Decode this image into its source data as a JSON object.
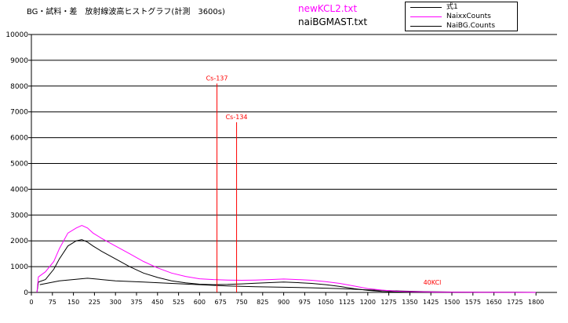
{
  "header": {
    "title": "BG・試料・差　放射線波高ヒストグラフ(計測　3600s)",
    "file1": "newKCL2.txt",
    "file2": "naiBGMAST.txt"
  },
  "colors": {
    "sample": "#ff00ff",
    "background": "#000000",
    "diff": "#000000",
    "annotation": "#ff0000",
    "file1": "#ff00ff"
  },
  "chart_data": {
    "type": "line",
    "xlim": [
      0,
      1875
    ],
    "ylim": [
      0,
      10000
    ],
    "x_ticks": [
      0,
      75,
      150,
      225,
      300,
      375,
      450,
      525,
      600,
      675,
      750,
      825,
      900,
      975,
      1050,
      1125,
      1200,
      1275,
      1350,
      1425,
      1500,
      1575,
      1650,
      1725,
      1800
    ],
    "y_ticks": [
      0,
      1000,
      2000,
      3000,
      4000,
      5000,
      6000,
      7000,
      8000,
      9000,
      10000
    ],
    "grid": "horizontal",
    "legend": "top-right",
    "series": [
      {
        "name": "式1",
        "color": "#000000",
        "x": [
          30,
          100,
          200,
          300,
          400,
          500,
          600,
          700,
          800,
          900,
          1000,
          1100,
          1200,
          1300,
          1400,
          1500,
          1600,
          1700,
          1800
        ],
        "y": [
          300,
          450,
          550,
          450,
          400,
          350,
          300,
          250,
          220,
          200,
          180,
          150,
          100,
          60,
          30,
          15,
          10,
          5,
          3
        ]
      },
      {
        "name": "NaixxCounts",
        "color": "#ff00ff",
        "x": [
          20,
          25,
          50,
          80,
          100,
          130,
          160,
          180,
          200,
          220,
          250,
          300,
          350,
          400,
          450,
          500,
          550,
          600,
          650,
          700,
          750,
          800,
          850,
          900,
          950,
          1000,
          1050,
          1100,
          1150,
          1200,
          1250,
          1300,
          1350,
          1400,
          1450,
          1500,
          1550,
          1600,
          1700,
          1800
        ],
        "y": [
          0,
          600,
          800,
          1200,
          1700,
          2300,
          2500,
          2600,
          2500,
          2300,
          2100,
          1800,
          1500,
          1200,
          950,
          750,
          620,
          530,
          500,
          480,
          470,
          480,
          500,
          520,
          500,
          470,
          420,
          350,
          250,
          150,
          90,
          50,
          30,
          20,
          12,
          8,
          5,
          3,
          2,
          1
        ]
      },
      {
        "name": "NaiBG.Counts",
        "color": "#000000",
        "x": [
          20,
          25,
          50,
          80,
          100,
          130,
          160,
          180,
          200,
          220,
          250,
          300,
          350,
          400,
          450,
          500,
          550,
          600,
          650,
          700,
          750,
          800,
          850,
          900,
          950,
          1000,
          1050,
          1100,
          1150,
          1200,
          1250,
          1300,
          1400,
          1500,
          1600,
          1700,
          1800
        ],
        "y": [
          0,
          400,
          500,
          900,
          1300,
          1800,
          2000,
          2050,
          1950,
          1800,
          1600,
          1300,
          1000,
          750,
          580,
          450,
          370,
          320,
          300,
          310,
          330,
          360,
          380,
          400,
          380,
          350,
          300,
          230,
          150,
          80,
          40,
          20,
          8,
          5,
          3,
          2,
          1
        ]
      }
    ],
    "annotations": [
      {
        "label": "Cs-137",
        "x": 662,
        "peak": 8100
      },
      {
        "label": "Cs-134",
        "x": 732,
        "peak": 6600
      },
      {
        "label": "40KCl",
        "x": 1430,
        "peak": 300
      }
    ]
  }
}
